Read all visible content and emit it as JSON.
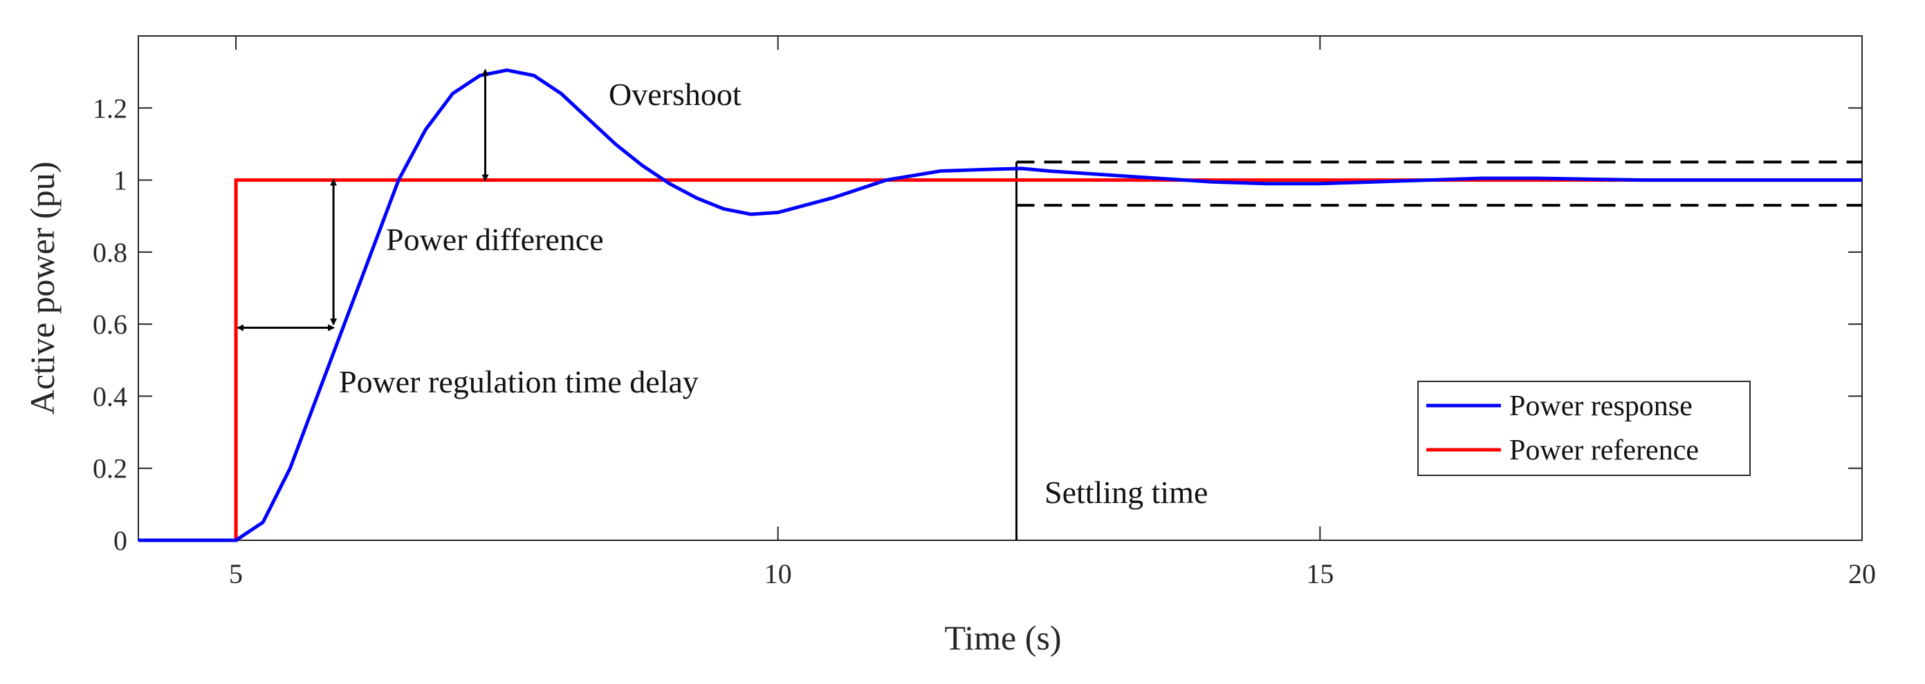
{
  "chart_data": {
    "type": "line",
    "xlabel": "Time (s)",
    "ylabel": "Active power (pu)",
    "xlim": [
      4.1,
      20
    ],
    "ylim": [
      0,
      1.4
    ],
    "x_ticks": [
      5,
      10,
      15,
      20
    ],
    "y_ticks": [
      0,
      0.2,
      0.4,
      0.6,
      0.8,
      1,
      1.2
    ],
    "grid": false,
    "legend_position": "lower-right",
    "series": [
      {
        "name": "Power response",
        "color": "#0000ff",
        "x": [
          4.1,
          5.0,
          5.25,
          5.5,
          5.75,
          6.0,
          6.25,
          6.5,
          6.75,
          7.0,
          7.25,
          7.5,
          7.75,
          8.0,
          8.25,
          8.5,
          8.75,
          9.0,
          9.25,
          9.5,
          9.75,
          10.0,
          10.5,
          11.0,
          11.5,
          12.0,
          12.25,
          12.5,
          13.0,
          13.5,
          14.0,
          14.5,
          15.0,
          15.5,
          16.0,
          16.5,
          17.0,
          18.0,
          19.0,
          20.0
        ],
        "y": [
          0,
          0,
          0.05,
          0.2,
          0.4,
          0.6,
          0.8,
          1.0,
          1.14,
          1.24,
          1.29,
          1.305,
          1.29,
          1.24,
          1.17,
          1.1,
          1.04,
          0.99,
          0.95,
          0.92,
          0.905,
          0.91,
          0.95,
          1.0,
          1.025,
          1.03,
          1.032,
          1.025,
          1.015,
          1.005,
          0.995,
          0.99,
          0.99,
          0.995,
          1.0,
          1.005,
          1.005,
          1.0,
          1.0,
          1.0
        ]
      },
      {
        "name": "Power reference",
        "color": "#ff0000",
        "x": [
          4.1,
          5.0,
          5.0,
          20.0
        ],
        "y": [
          0,
          0,
          1,
          1
        ]
      }
    ],
    "settling_band": [
      0.93,
      1.05
    ],
    "settling_time": 12.2,
    "annotations": {
      "overshoot": "Overshoot",
      "power_difference": "Power difference",
      "time_delay": "Power regulation time delay",
      "settling_time": "Settling time"
    }
  }
}
